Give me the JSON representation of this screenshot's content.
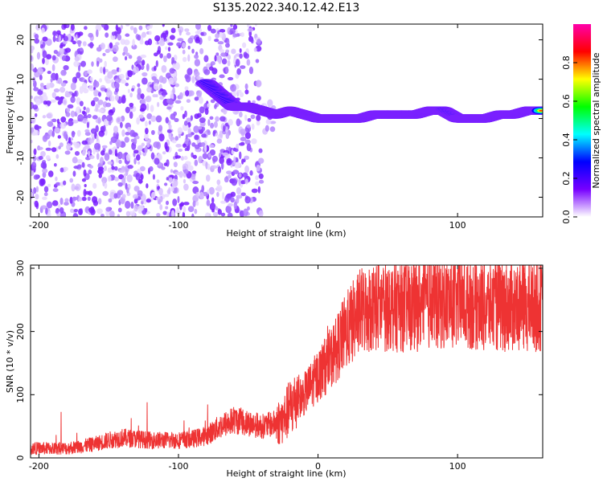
{
  "title": "S135.2022.340.12.42.E13",
  "chart_data": [
    {
      "type": "heatmap",
      "title": "S135.2022.340.12.42.E13",
      "xlabel": "Height of straight line (km)",
      "ylabel": "Frequency (Hz)",
      "xlim": [
        -206,
        161
      ],
      "ylim": [
        -25,
        24
      ],
      "x_ticks": [
        -200,
        -100,
        0,
        100
      ],
      "y_ticks": [
        -20,
        -10,
        0,
        10,
        20
      ],
      "colorbar": {
        "label": "Normalized spectral amplitude",
        "range": [
          0,
          1
        ],
        "ticks": [
          0.0,
          0.2,
          0.4,
          0.6,
          0.8
        ],
        "colormap": [
          "#ffffff",
          "#7700ff",
          "#0000ff",
          "#00ffff",
          "#00ff00",
          "#ffff00",
          "#ff0000",
          "#ff00aa"
        ]
      },
      "ridge": {
        "x": [
          -80,
          -70,
          -60,
          -50,
          -40,
          -30,
          -20,
          -10,
          0,
          10,
          20,
          30,
          40,
          50,
          60,
          70,
          80,
          90,
          100,
          110,
          120,
          130,
          140,
          150,
          160
        ],
        "y": [
          9,
          6,
          3,
          3,
          2,
          1,
          2,
          1,
          0,
          0,
          0,
          0,
          1,
          1,
          1,
          1,
          2,
          2,
          0,
          0,
          0,
          1,
          1,
          2,
          2
        ]
      }
    },
    {
      "type": "line",
      "xlabel": "Height of straight line (km)",
      "ylabel": "SNR (10 * v/v)",
      "xlim": [
        -206,
        161
      ],
      "ylim": [
        0,
        305
      ],
      "x_ticks": [
        -200,
        -100,
        0,
        100
      ],
      "y_ticks": [
        0,
        100,
        200,
        300
      ],
      "color": "#ee3333",
      "series": [
        {
          "x": [
            -206,
            -200,
            -190,
            -180,
            -170,
            -160,
            -150,
            -140,
            -130,
            -120,
            -110,
            -100,
            -90,
            -80,
            -70,
            -60,
            -50,
            -40,
            -30,
            -25,
            -20,
            -10,
            0,
            10,
            20,
            30,
            40,
            50,
            60,
            70,
            80,
            90,
            100,
            110,
            120,
            130,
            140,
            150,
            161
          ],
          "y": [
            15,
            15,
            15,
            15,
            18,
            22,
            28,
            32,
            30,
            28,
            28,
            28,
            30,
            35,
            50,
            60,
            55,
            50,
            55,
            60,
            80,
            100,
            130,
            160,
            200,
            230,
            240,
            240,
            240,
            240,
            245,
            245,
            245,
            245,
            240,
            240,
            240,
            240,
            240
          ]
        }
      ]
    }
  ]
}
